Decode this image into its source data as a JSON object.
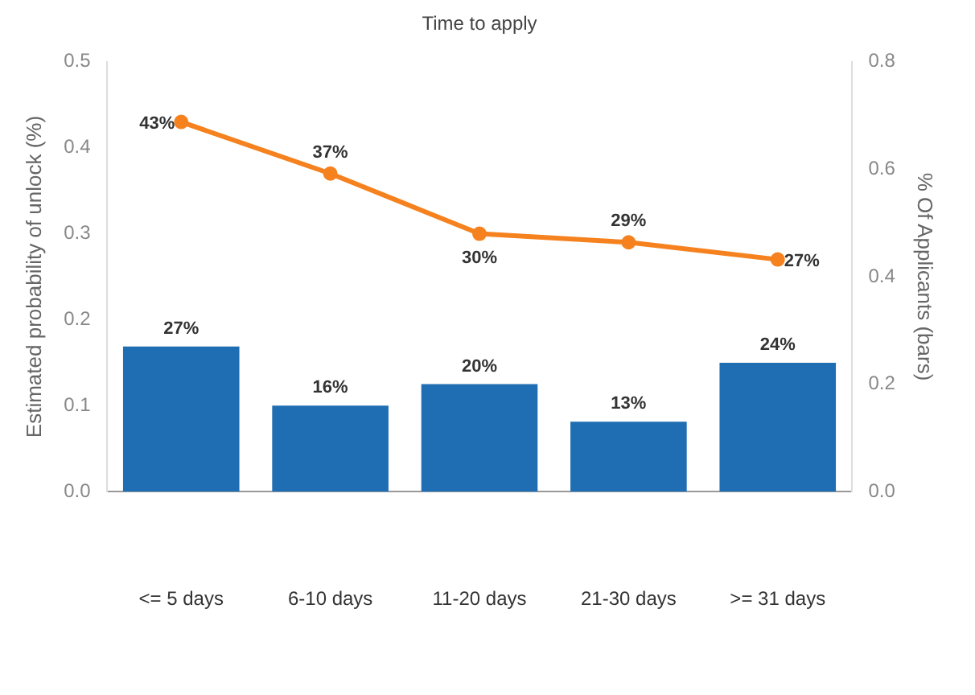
{
  "chart_data": {
    "type": "bar",
    "title": "Time to apply",
    "ylabel": "Estimated probability of unlock (%)",
    "y2label": "% Of Applicants (bars)",
    "categories": [
      "<= 5 days",
      "6-10 days",
      "11-20 days",
      "21-30 days",
      ">= 31 days"
    ],
    "series": [
      {
        "axis": "y2",
        "color": "#1f6db3",
        "values": [
          0.27,
          0.16,
          0.2,
          0.13,
          0.24
        ],
        "value_labels": [
          "27%",
          "16%",
          "20%",
          "13%",
          "24%"
        ]
      },
      {
        "type": "line",
        "axis": "y",
        "color": "#f5821f",
        "values": [
          0.43,
          0.37,
          0.3,
          0.29,
          0.27
        ],
        "value_labels": [
          "43%",
          "37%",
          "30%",
          "29%",
          "27%"
        ],
        "marker": "circle"
      }
    ],
    "ylim": [
      0,
      0.5
    ],
    "yticks": [
      {
        "value": 0,
        "label": "0.0"
      },
      0.1,
      0.2,
      0.3,
      0.4,
      0.5
    ],
    "y2lim": [
      0,
      0.8
    ],
    "y2ticks": [
      {
        "value": 0,
        "label": "0.0"
      },
      0.2,
      0.4,
      0.6,
      0.8
    ],
    "grid": false,
    "legend": false
  }
}
